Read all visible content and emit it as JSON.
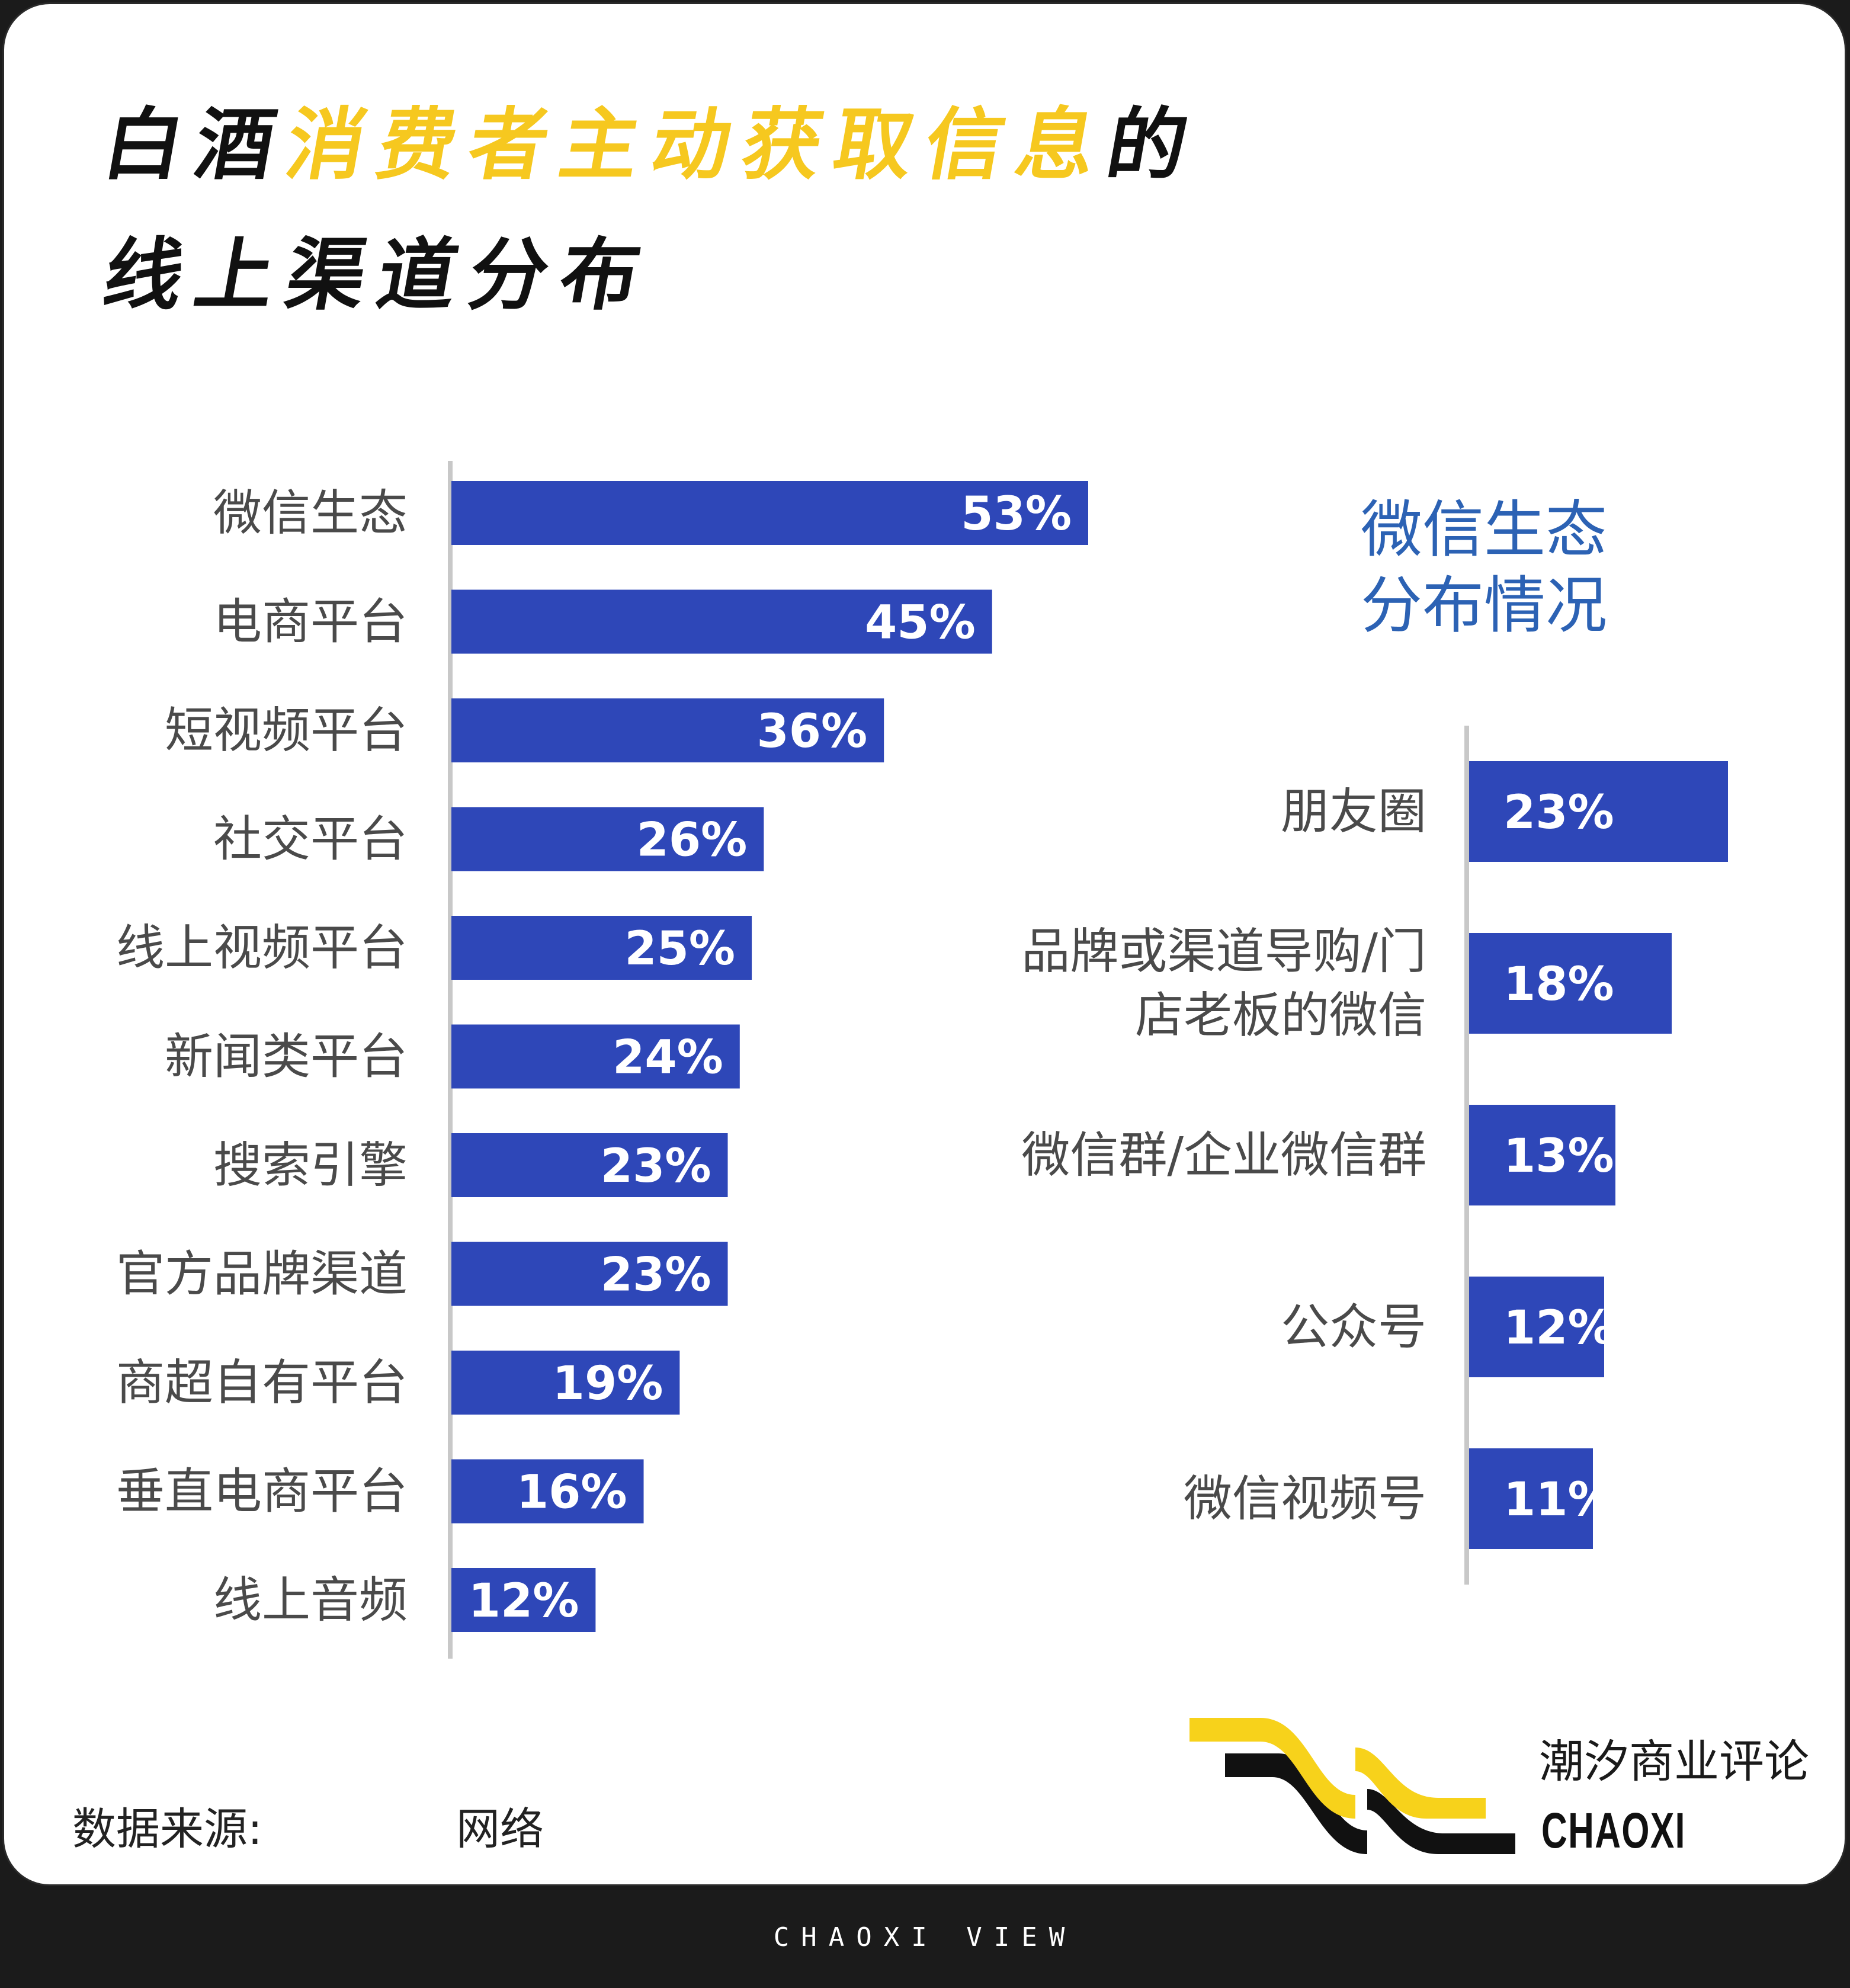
{
  "title": {
    "line1_part1": "白酒",
    "line1_highlight": "消费者主动获取信息",
    "line1_part2": "的",
    "line2": "线上渠道分布"
  },
  "colors": {
    "bar": "#2e47b8",
    "highlight": "#f6c81f",
    "subtitle": "#2c62b4",
    "footer_bg": "#1b1b1b"
  },
  "chart_data": [
    {
      "type": "bar",
      "orientation": "horizontal",
      "categories": [
        "微信生态",
        "电商平台",
        "短视频平台",
        "社交平台",
        "线上视频平台",
        "新闻类平台",
        "搜索引擎",
        "官方品牌渠道",
        "商超自有平台",
        "垂直电商平台",
        "线上音频"
      ],
      "values": [
        53,
        45,
        36,
        26,
        25,
        24,
        23,
        23,
        19,
        16,
        12
      ],
      "labels": [
        "53%",
        "45%",
        "36%",
        "26%",
        "25%",
        "24%",
        "23%",
        "23%",
        "19%",
        "16%",
        "12%"
      ],
      "unit": "%",
      "xlim": [
        0,
        53
      ]
    },
    {
      "type": "bar",
      "orientation": "horizontal",
      "title_lines": [
        "微信生态",
        "分布情况"
      ],
      "categories": [
        [
          "朋友圈"
        ],
        [
          "品牌或渠道导购/门",
          "店老板的微信"
        ],
        [
          "微信群/企业微信群"
        ],
        [
          "公众号"
        ],
        [
          "微信视频号"
        ]
      ],
      "values": [
        23,
        18,
        13,
        12,
        11
      ],
      "labels": [
        "23%",
        "18%",
        "13%",
        "12%",
        "11%"
      ],
      "unit": "%",
      "xlim": [
        0,
        23
      ]
    }
  ],
  "footer": {
    "source_label": "数据来源:",
    "source_value": "网络",
    "brand_name": "潮汐商业评论",
    "brand_latin": "CHAOXI",
    "tagline": "CHAOXI VIEW"
  }
}
